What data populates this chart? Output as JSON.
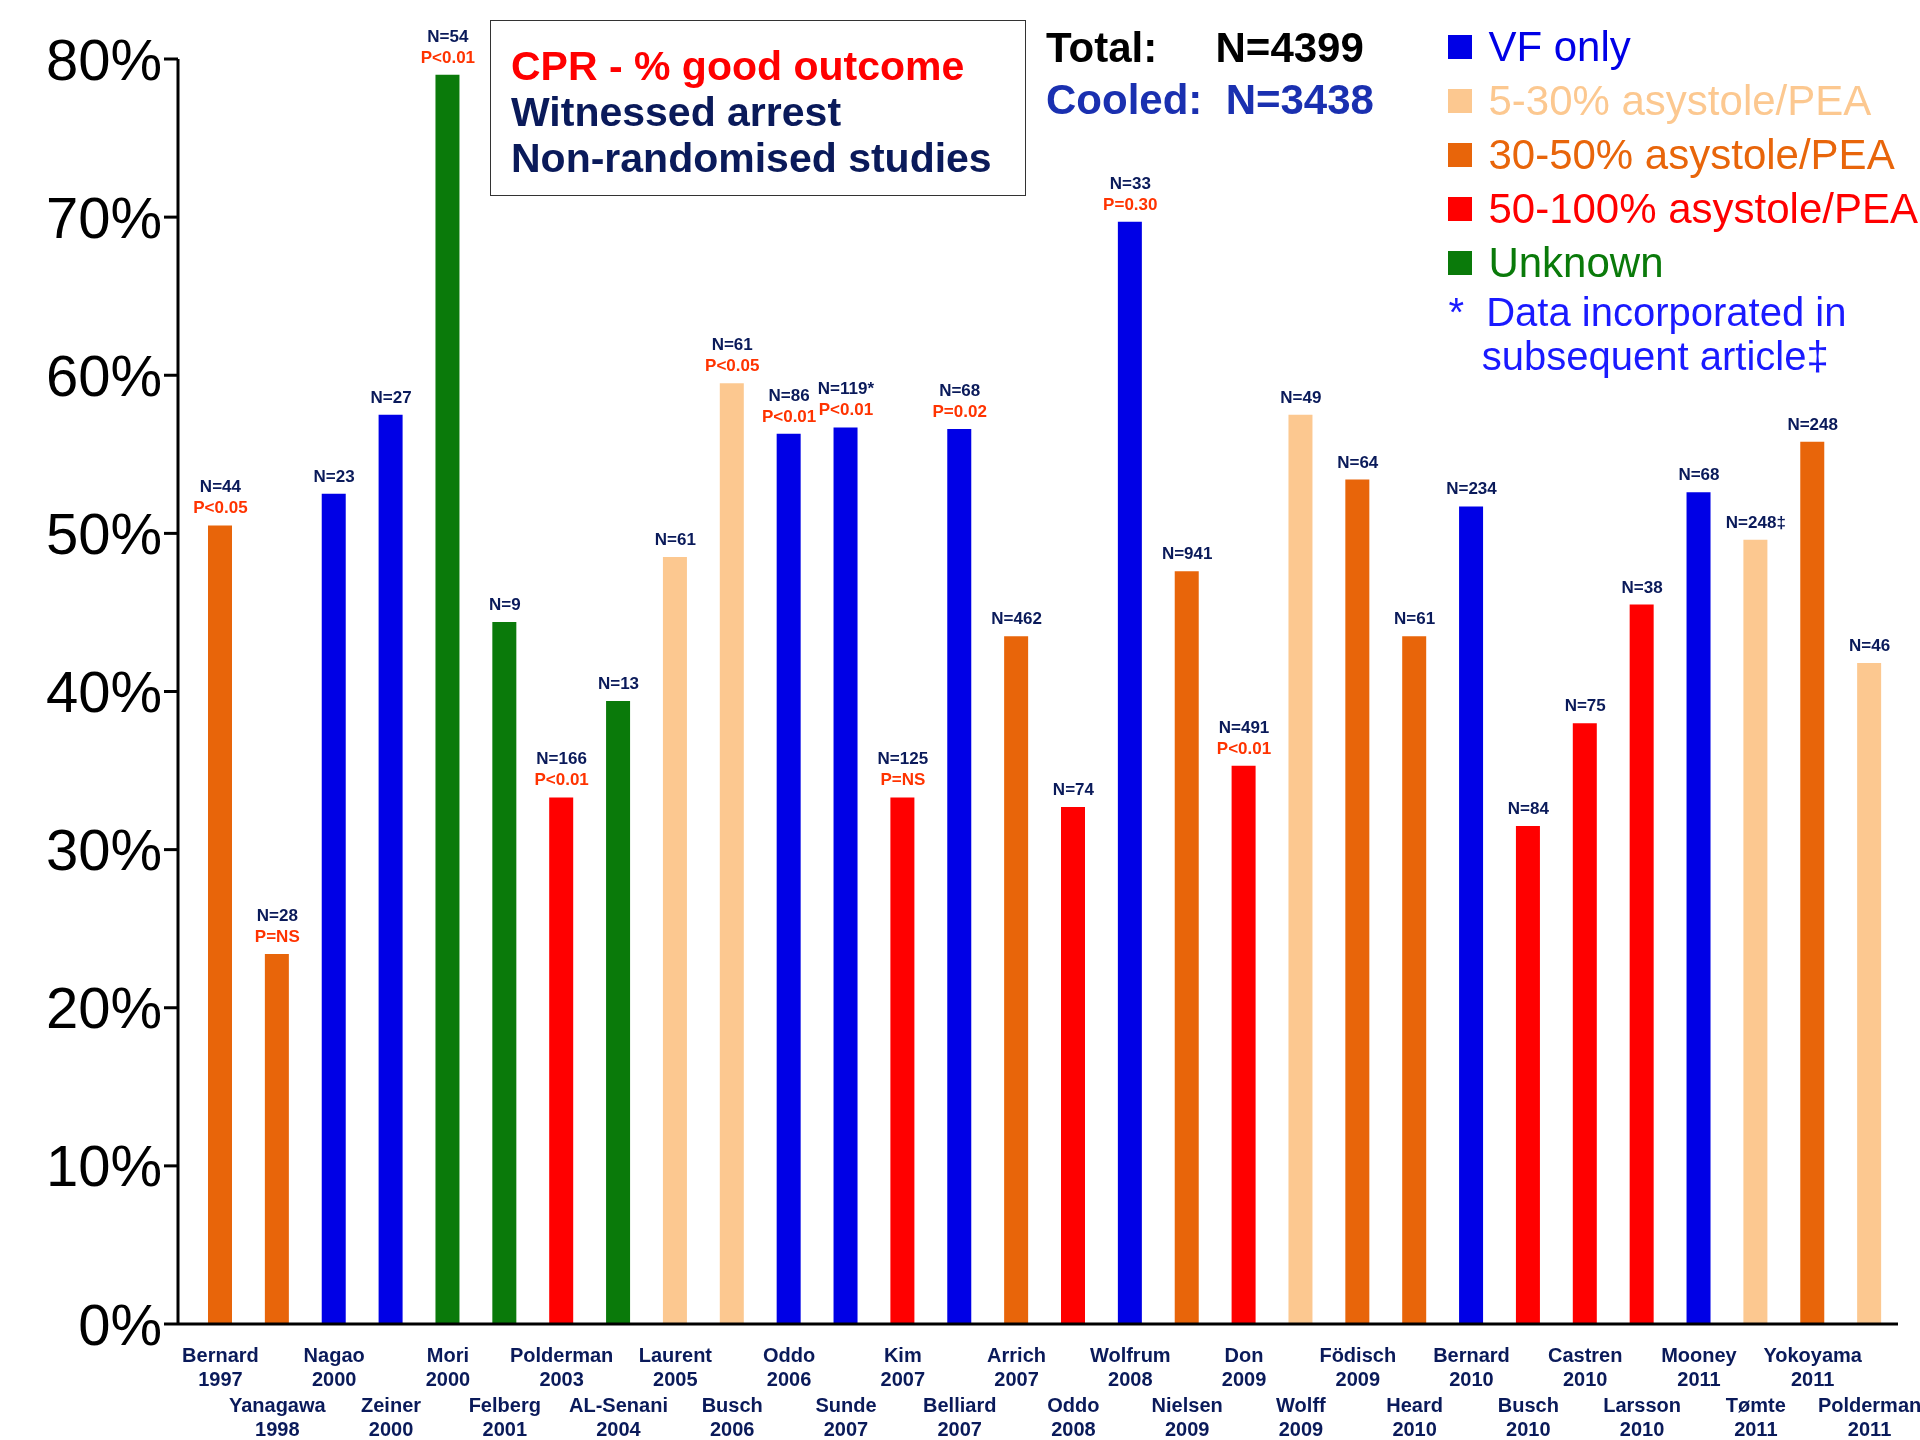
{
  "chart_data": {
    "type": "bar",
    "title": "CPR - % good outcome",
    "subtitle": "Witnessed arrest\nNon-randomised studies",
    "categories": [
      "Bernard 1997",
      "Yanagawa 1998",
      "Nagao 2000",
      "Zeiner 2000",
      "Mori 2000",
      "Felberg 2001",
      "Polderman 2003",
      "AL-Senani 2004",
      "Laurent 2005",
      "Busch 2006",
      "Oddo 2006",
      "Sunde 2007",
      "Kim 2007",
      "Belliard 2007",
      "Arrich 2007",
      "Oddo 2008",
      "Wolfrum 2008",
      "Nielsen 2009",
      "Don 2009",
      "Wolff 2009",
      "Födisch 2009",
      "Heard 2010",
      "Bernard 2010",
      "Busch 2010",
      "Castren 2010",
      "Larsson 2010",
      "Mooney 2011",
      "Tømte 2011",
      "Yokoyama 2011",
      "Polderman 2011"
    ],
    "stacked": true,
    "series": [
      {
        "name": "VF only",
        "color": "#0000e6",
        "values": [
          null,
          null,
          52.5,
          57.5,
          null,
          null,
          null,
          null,
          null,
          null,
          56.3,
          56.7,
          null,
          56.6,
          null,
          null,
          69.7,
          null,
          null,
          null,
          null,
          null,
          51.7,
          null,
          null,
          null,
          52.6,
          null,
          null,
          null
        ]
      },
      {
        "name": "5-30% asystole/PEA",
        "color": "#fcc890",
        "values": [
          null,
          null,
          null,
          null,
          null,
          null,
          null,
          null,
          48.5,
          59.5,
          null,
          null,
          null,
          null,
          null,
          null,
          null,
          null,
          null,
          57.5,
          null,
          null,
          null,
          null,
          null,
          null,
          null,
          49.6,
          null,
          41.8
        ]
      },
      {
        "name": "30-50% asystole/PEA",
        "color": "#e8650a",
        "values": [
          50.5,
          23.4,
          null,
          null,
          null,
          null,
          null,
          null,
          null,
          null,
          null,
          null,
          null,
          null,
          43.5,
          null,
          null,
          47.6,
          null,
          null,
          53.4,
          43.5,
          null,
          null,
          null,
          null,
          null,
          null,
          55.8,
          null
        ]
      },
      {
        "name": "50-100% asystole/PEA",
        "color": "#ff0000",
        "values": [
          null,
          null,
          null,
          null,
          null,
          null,
          33.3,
          null,
          null,
          null,
          null,
          null,
          33.3,
          null,
          null,
          32.7,
          null,
          null,
          35.3,
          null,
          null,
          null,
          null,
          31.5,
          38,
          45.5,
          null,
          null,
          null,
          null
        ]
      },
      {
        "name": "Unknown",
        "color": "#0a7a0a",
        "values": [
          null,
          null,
          null,
          null,
          79,
          44.4,
          null,
          39.4,
          null,
          null,
          null,
          null,
          null,
          null,
          null,
          null,
          null,
          null,
          null,
          null,
          null,
          null,
          null,
          null,
          null,
          null,
          null,
          null,
          null,
          null
        ]
      }
    ],
    "ylim": [
      0,
      80
    ],
    "yticks": [
      {
        "value": 0,
        "label": "0%"
      },
      {
        "value": 10,
        "label": "10%"
      },
      {
        "value": 20,
        "label": "20%"
      },
      {
        "value": 30,
        "label": "30%"
      },
      {
        "value": 40,
        "label": "40%"
      },
      {
        "value": 50,
        "label": "50%"
      },
      {
        "value": 60,
        "label": "60%"
      },
      {
        "value": 70,
        "label": "70%"
      },
      {
        "value": 80,
        "label": "80%"
      }
    ],
    "legend": "top right",
    "grid": false,
    "annotations": [
      "Total:     N=4399",
      "Cooled:  N=3438",
      "*  Data incorporated in\n   subsequent article‡",
      {
        "text": "N=44",
        "x": "Bernard 1997",
        "y": 50.5
      },
      {
        "text": "P<0.05",
        "x": "Bernard 1997",
        "y": 50.5
      },
      {
        "text": "N=28",
        "x": "Yanagawa 1998",
        "y": 23.4
      },
      {
        "text": "P=NS",
        "x": "Yanagawa 1998",
        "y": 23.4
      },
      {
        "text": "N=23",
        "x": "Nagao 2000",
        "y": 52.5
      },
      {
        "text": "N=27",
        "x": "Zeiner 2000",
        "y": 57.5
      },
      {
        "text": "N=54",
        "x": "Mori 2000",
        "y": 79
      },
      {
        "text": "P<0.01",
        "x": "Mori 2000",
        "y": 79
      },
      {
        "text": "N=9",
        "x": "Felberg 2001",
        "y": 44.4
      },
      {
        "text": "N=166",
        "x": "Polderman 2003",
        "y": 33.3
      },
      {
        "text": "P<0.01",
        "x": "Polderman 2003",
        "y": 33.3
      },
      {
        "text": "N=13",
        "x": "AL-Senani 2004",
        "y": 39.4
      },
      {
        "text": "N=61",
        "x": "Laurent 2005",
        "y": 48.5
      },
      {
        "text": "N=61",
        "x": "Busch 2006",
        "y": 59.5
      },
      {
        "text": "P<0.05",
        "x": "Busch 2006",
        "y": 59.5
      },
      {
        "text": "N=86",
        "x": "Oddo 2006",
        "y": 56.3
      },
      {
        "text": "P<0.01",
        "x": "Oddo 2006",
        "y": 56.3
      },
      {
        "text": "N=119*",
        "x": "Sunde 2007",
        "y": 56.7
      },
      {
        "text": "P<0.01",
        "x": "Sunde 2007",
        "y": 56.7
      },
      {
        "text": "N=125",
        "x": "Kim 2007",
        "y": 33.3
      },
      {
        "text": "P=NS",
        "x": "Kim 2007",
        "y": 33.3
      },
      {
        "text": "N=68",
        "x": "Belliard 2007",
        "y": 56.6
      },
      {
        "text": "P=0.02",
        "x": "Belliard 2007",
        "y": 56.6
      },
      {
        "text": "N=462",
        "x": "Arrich 2007",
        "y": 43.5
      },
      {
        "text": "N=74",
        "x": "Oddo 2008",
        "y": 32.7
      },
      {
        "text": "N=33",
        "x": "Wolfrum 2008",
        "y": 69.7
      },
      {
        "text": "P=0.30",
        "x": "Wolfrum 2008",
        "y": 69.7
      },
      {
        "text": "N=941",
        "x": "Nielsen 2009",
        "y": 47.6
      },
      {
        "text": "N=491",
        "x": "Don 2009",
        "y": 35.3
      },
      {
        "text": "P<0.01",
        "x": "Don 2009",
        "y": 35.3
      },
      {
        "text": "N=49",
        "x": "Wolff 2009",
        "y": 57.5
      },
      {
        "text": "N=64",
        "x": "Födisch 2009",
        "y": 53.4
      },
      {
        "text": "N=61",
        "x": "Heard 2010",
        "y": 43.5
      },
      {
        "text": "N=234",
        "x": "Bernard 2010",
        "y": 51.7
      },
      {
        "text": "N=84",
        "x": "Busch 2010",
        "y": 31.5
      },
      {
        "text": "N=75",
        "x": "Castren 2010",
        "y": 38
      },
      {
        "text": "N=38",
        "x": "Larsson 2010",
        "y": 45.5
      },
      {
        "text": "N=68",
        "x": "Mooney 2011",
        "y": 52.6
      },
      {
        "text": "N=248‡",
        "x": "Tømte 2011",
        "y": 49.6
      },
      {
        "text": "N=248",
        "x": "Yokoyama 2011",
        "y": 55.8
      },
      {
        "text": "N=46",
        "x": "Polderman 2011",
        "y": 41.8
      }
    ]
  }
}
